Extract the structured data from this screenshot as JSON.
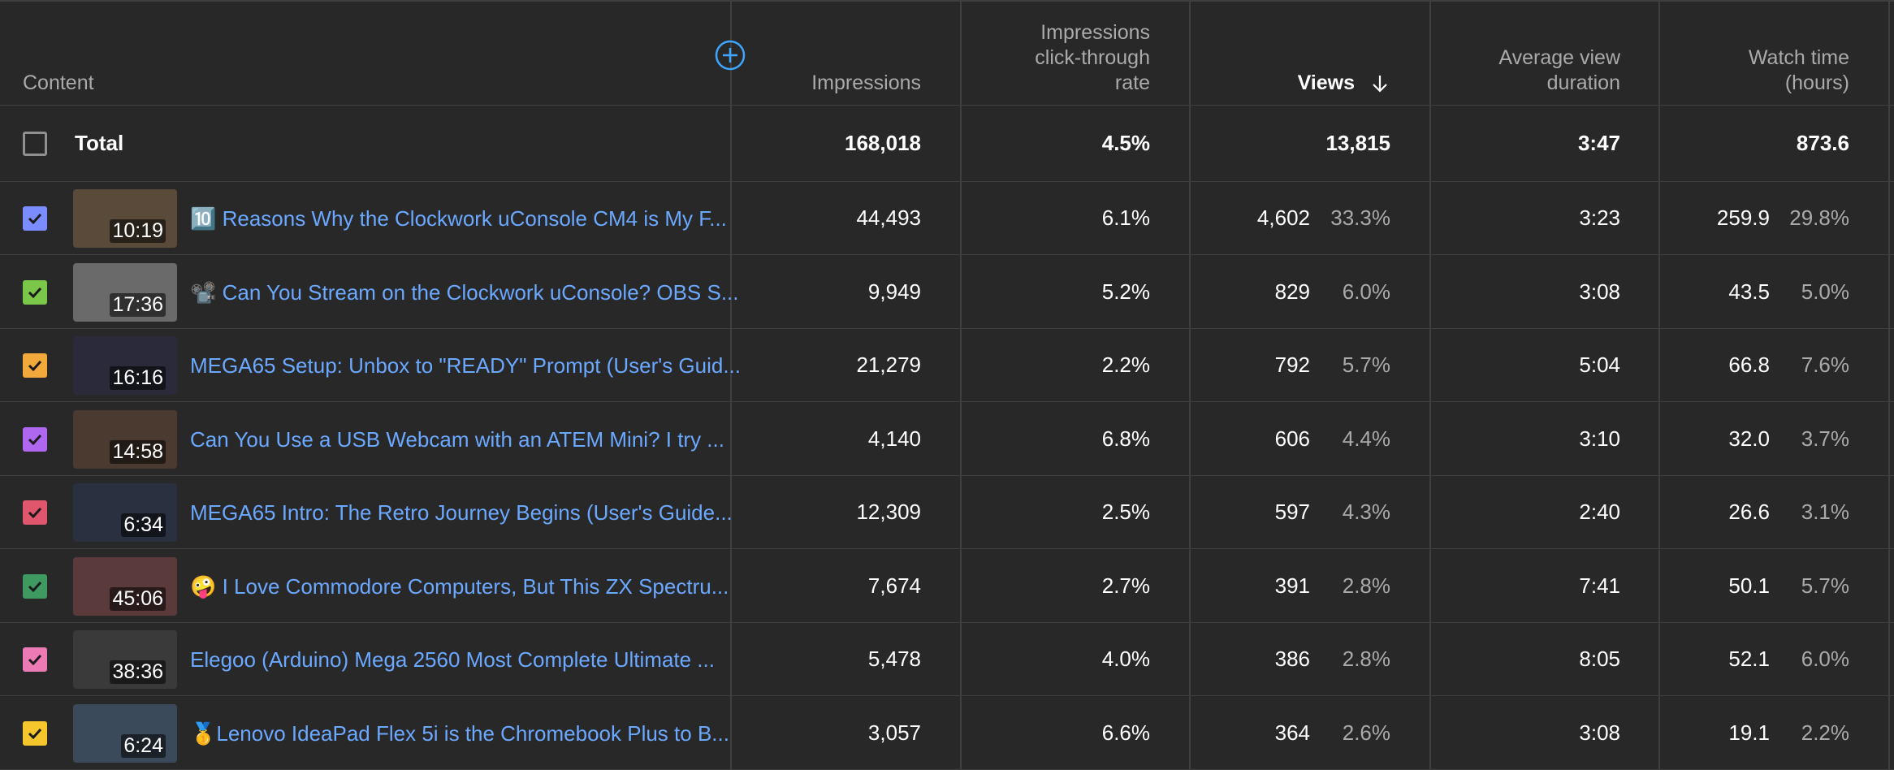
{
  "header": {
    "content": "Content",
    "impressions": "Impressions",
    "ctr_line1": "Impressions",
    "ctr_line2": "click-through",
    "ctr_line3": "rate",
    "views": "Views",
    "avd_line1": "Average view",
    "avd_line2": "duration",
    "watch_line1": "Watch time",
    "watch_line2": "(hours)"
  },
  "colors": {
    "link": "#6ba8ff",
    "background": "#282828",
    "add_button": "#3ea6ff"
  },
  "total": {
    "label": "Total",
    "impressions": "168,018",
    "ctr": "4.5%",
    "views": "13,815",
    "avd": "3:47",
    "watch": "873.6"
  },
  "rows": [
    {
      "color": "#7b8cff",
      "thumb_bg": "#5a4a3a",
      "duration": "10:19",
      "title": "🔟 Reasons Why the Clockwork uConsole CM4 is My F...",
      "impressions": "44,493",
      "ctr": "6.1%",
      "views": "4,602",
      "views_pct": "33.3%",
      "avd": "3:23",
      "watch": "259.9",
      "watch_pct": "29.8%"
    },
    {
      "color": "#7ac74a",
      "thumb_bg": "#6a6a6a",
      "duration": "17:36",
      "title": "📽️ Can You Stream on the Clockwork uConsole? OBS S...",
      "impressions": "9,949",
      "ctr": "5.2%",
      "views": "829",
      "views_pct": "6.0%",
      "avd": "3:08",
      "watch": "43.5",
      "watch_pct": "5.0%"
    },
    {
      "color": "#f2a93b",
      "thumb_bg": "#2a2a3a",
      "duration": "16:16",
      "title": "MEGA65 Setup: Unbox to \"READY\" Prompt (User's Guid...",
      "impressions": "21,279",
      "ctr": "2.2%",
      "views": "792",
      "views_pct": "5.7%",
      "avd": "5:04",
      "watch": "66.8",
      "watch_pct": "7.6%"
    },
    {
      "color": "#b067ef",
      "thumb_bg": "#4a3a30",
      "duration": "14:58",
      "title": "Can You Use a USB Webcam with an ATEM Mini? I try ...",
      "impressions": "4,140",
      "ctr": "6.8%",
      "views": "606",
      "views_pct": "4.4%",
      "avd": "3:10",
      "watch": "32.0",
      "watch_pct": "3.7%"
    },
    {
      "color": "#e0566d",
      "thumb_bg": "#2a3040",
      "duration": "6:34",
      "title": "MEGA65 Intro: The Retro Journey Begins (User's Guide...",
      "impressions": "12,309",
      "ctr": "2.5%",
      "views": "597",
      "views_pct": "4.3%",
      "avd": "2:40",
      "watch": "26.6",
      "watch_pct": "3.1%"
    },
    {
      "color": "#3f9a62",
      "thumb_bg": "#5a3a3a",
      "duration": "45:06",
      "title": "🤪 I Love Commodore Computers, But This ZX Spectru...",
      "impressions": "7,674",
      "ctr": "2.7%",
      "views": "391",
      "views_pct": "2.8%",
      "avd": "7:41",
      "watch": "50.1",
      "watch_pct": "5.7%"
    },
    {
      "color": "#ec7ab5",
      "thumb_bg": "#3a3a3a",
      "duration": "38:36",
      "title": "Elegoo (Arduino) Mega 2560 Most Complete Ultimate ...",
      "impressions": "5,478",
      "ctr": "4.0%",
      "views": "386",
      "views_pct": "2.8%",
      "avd": "8:05",
      "watch": "52.1",
      "watch_pct": "6.0%"
    },
    {
      "color": "#f5c72c",
      "thumb_bg": "#3a4a5a",
      "duration": "6:24",
      "title": "🥇Lenovo IdeaPad Flex 5i is the Chromebook Plus to B...",
      "impressions": "3,057",
      "ctr": "6.6%",
      "views": "364",
      "views_pct": "2.6%",
      "avd": "3:08",
      "watch": "19.1",
      "watch_pct": "2.2%"
    }
  ]
}
